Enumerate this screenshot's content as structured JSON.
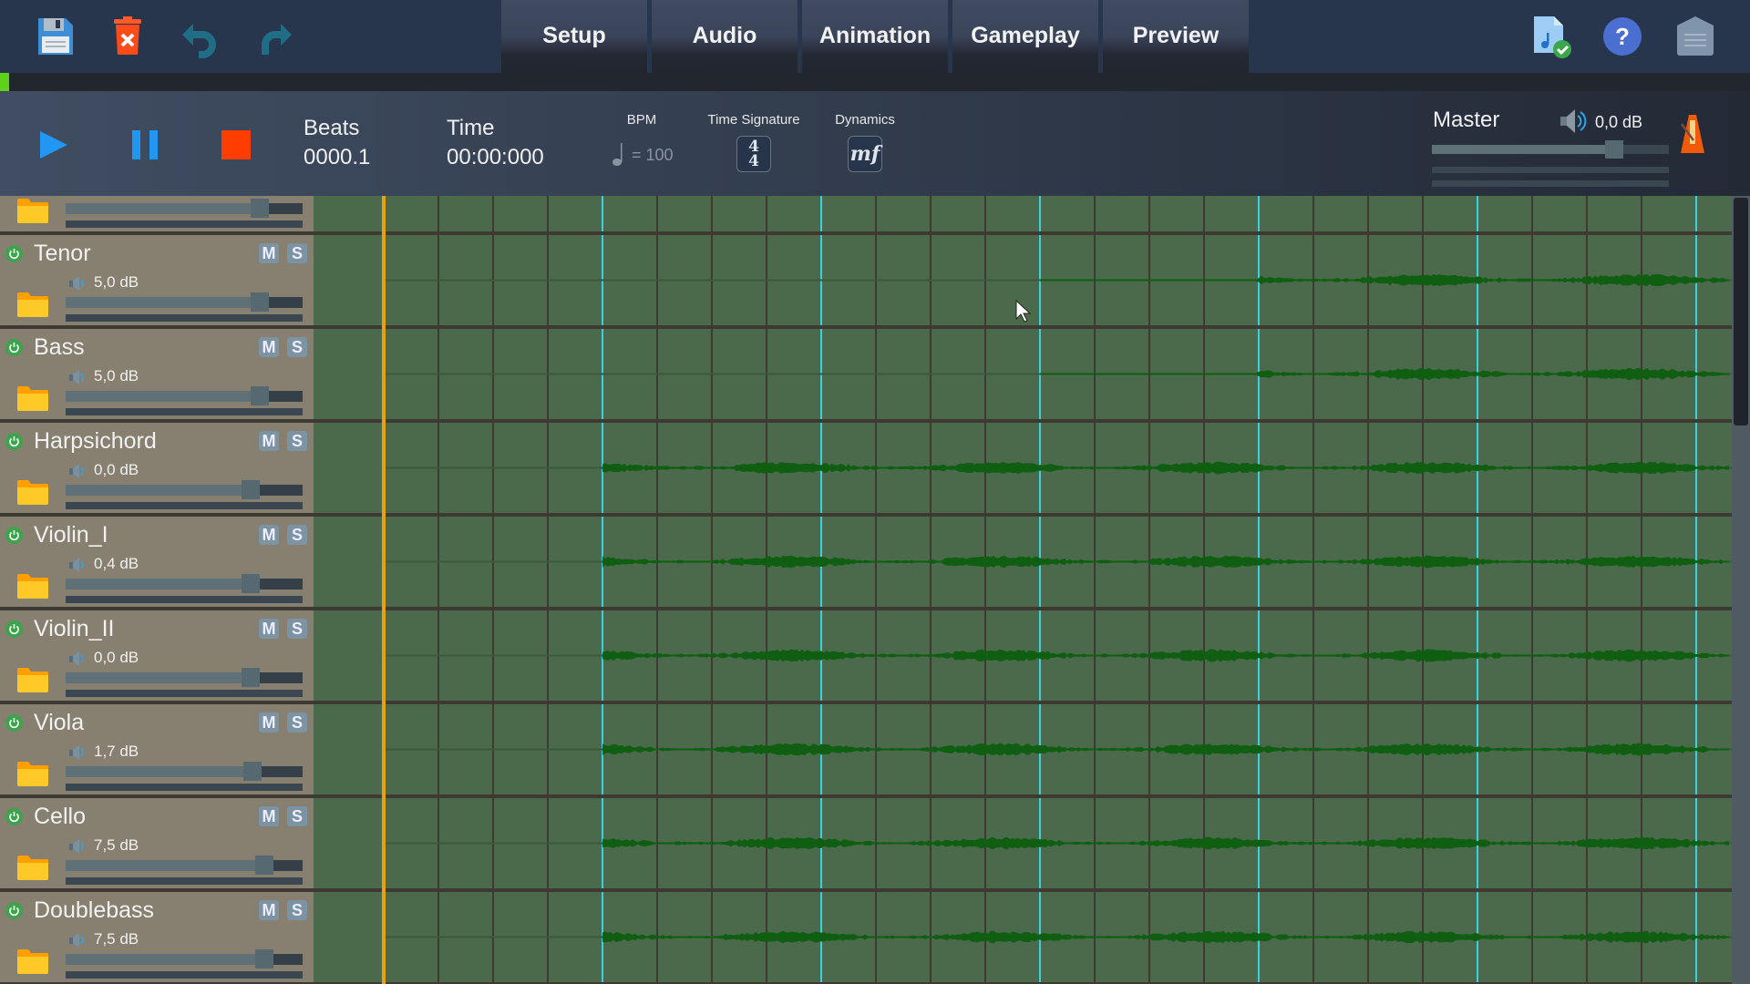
{
  "toolbar": {
    "icons": [
      "save-icon",
      "delete-icon",
      "undo-icon",
      "redo-icon"
    ],
    "tabs": [
      {
        "label": "Setup"
      },
      {
        "label": "Audio"
      },
      {
        "label": "Animation"
      },
      {
        "label": "Gameplay"
      },
      {
        "label": "Preview"
      }
    ],
    "right_icons": [
      "music-file-check-icon",
      "help-icon",
      "menu-icon"
    ]
  },
  "progress": {
    "fraction": 0.005,
    "color": "#5fd11a"
  },
  "transport": {
    "beats_label": "Beats",
    "beats_value": "0000.1",
    "time_label": "Time",
    "time_value": "00:00:000",
    "bpm_label": "BPM",
    "bpm_value": "= 100",
    "time_signature_label": "Time Signature",
    "time_signature_top": "4",
    "time_signature_bottom": "4",
    "dynamics_label": "Dynamics",
    "dynamics_value": "mf",
    "master_label": "Master",
    "master_db": "0,0 dB",
    "master_level": 0.77
  },
  "colors": {
    "play": "#2196f3",
    "stop": "#ff3d00",
    "playhead": "#e8a10c",
    "measure_line": "#3ad0e0",
    "waveform": "#0f5e12"
  },
  "tracks": [
    {
      "name": "",
      "db": "",
      "level": 0.82,
      "partial": true
    },
    {
      "name": "Tenor",
      "db": "5,0 dB",
      "level": 0.82,
      "clip_start_measure": 4,
      "loud_from_measure": 5
    },
    {
      "name": "Bass",
      "db": "5,0 dB",
      "level": 0.82,
      "clip_start_measure": 4,
      "loud_from_measure": 5
    },
    {
      "name": "Harpsichord",
      "db": "0,0 dB",
      "level": 0.78,
      "clip_start_measure": 2,
      "loud_from_measure": 2
    },
    {
      "name": "Violin_I",
      "db": "0,4 dB",
      "level": 0.78,
      "clip_start_measure": 2,
      "loud_from_measure": 2
    },
    {
      "name": "Violin_II",
      "db": "0,0 dB",
      "level": 0.78,
      "clip_start_measure": 2,
      "loud_from_measure": 2
    },
    {
      "name": "Viola",
      "db": "1,7 dB",
      "level": 0.79,
      "clip_start_measure": 2,
      "loud_from_measure": 2
    },
    {
      "name": "Cello",
      "db": "7,5 dB",
      "level": 0.84,
      "clip_start_measure": 2,
      "loud_from_measure": 2
    },
    {
      "name": "Doublebass",
      "db": "7,5 dB",
      "level": 0.84,
      "clip_start_measure": 2,
      "loud_from_measure": 2
    }
  ],
  "mute_label": "M",
  "solo_label": "S"
}
